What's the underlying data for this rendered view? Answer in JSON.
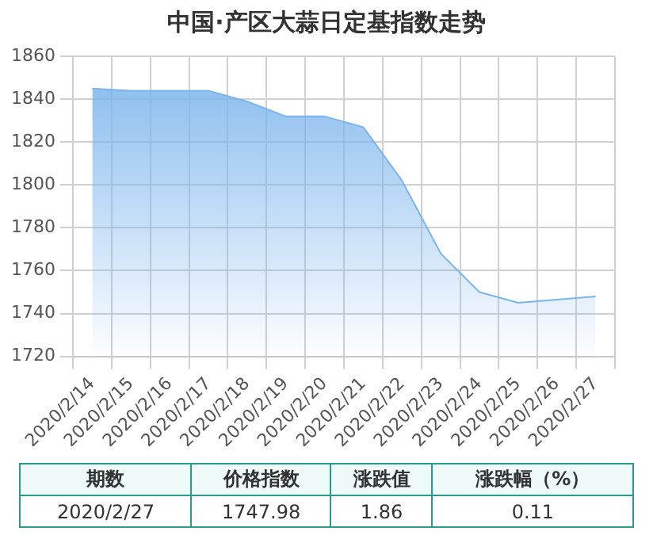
{
  "chart_data": {
    "type": "area",
    "title": "中国·产区大蒜日定基指数走势",
    "categories": [
      "2020/2/14",
      "2020/2/15",
      "2020/2/16",
      "2020/2/17",
      "2020/2/18",
      "2020/2/19",
      "2020/2/20",
      "2020/2/21",
      "2020/2/22",
      "2020/2/23",
      "2020/2/24",
      "2020/2/25",
      "2020/2/26",
      "2020/2/27"
    ],
    "values": [
      1845,
      1844,
      1844,
      1844,
      1839,
      1832,
      1832,
      1827,
      1802,
      1768,
      1750,
      1745,
      1746.5,
      1747.98
    ],
    "color": "#7cb5ec",
    "ylim": [
      1720,
      1860
    ],
    "yticks": [
      1720,
      1740,
      1760,
      1780,
      1800,
      1820,
      1840,
      1860
    ],
    "grid": true,
    "annotations": [
      "期数",
      "价格指数",
      "涨跌值",
      "涨跌幅（%）",
      "2020/2/27",
      "1747.98",
      "1.86",
      "0.11"
    ]
  }
}
